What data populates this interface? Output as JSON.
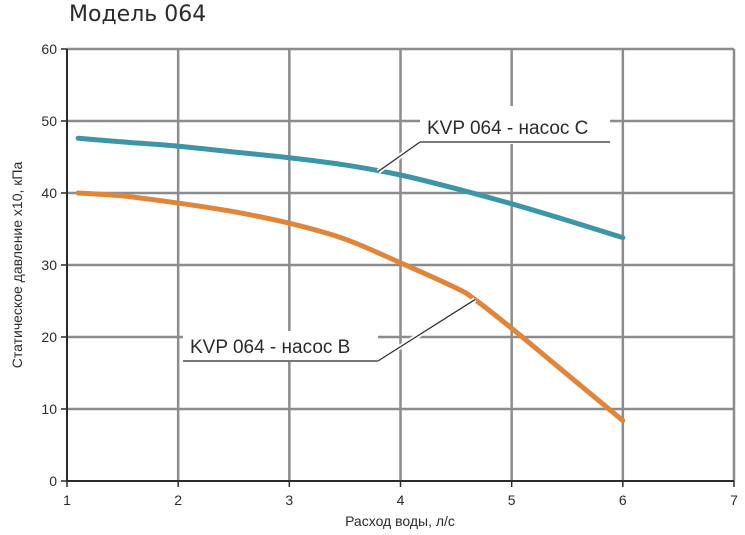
{
  "chart_data": {
    "type": "line",
    "title": "Модель 064",
    "xlabel": "Расход воды, л/с",
    "ylabel": "Статическое давление x10, кПа",
    "xlim": [
      1,
      7
    ],
    "ylim": [
      0,
      60
    ],
    "x_ticks": [
      "1",
      "2",
      "3",
      "4",
      "5",
      "6",
      "7"
    ],
    "y_ticks": [
      "0",
      "10",
      "20",
      "30",
      "40",
      "50",
      "60"
    ],
    "grid": true,
    "series": [
      {
        "name": "KVP 064 - насос C",
        "color": "#3d95a8",
        "x": [
          1.1,
          1.5,
          2.0,
          2.5,
          3.0,
          3.5,
          4.0,
          4.5,
          5.0,
          5.5,
          6.0
        ],
        "y": [
          47.6,
          47.1,
          46.5,
          45.7,
          44.9,
          43.9,
          42.5,
          40.6,
          38.5,
          36.2,
          33.8
        ]
      },
      {
        "name": "KVP 064 - насос B",
        "color": "#e0853a",
        "x": [
          1.1,
          1.5,
          2.0,
          2.5,
          3.0,
          3.5,
          4.0,
          4.5,
          4.67,
          5.0,
          5.5,
          6.0
        ],
        "y": [
          40.0,
          39.6,
          38.6,
          37.4,
          35.8,
          33.6,
          30.3,
          26.8,
          25.2,
          21.2,
          14.8,
          8.4
        ]
      }
    ],
    "annotations": [
      {
        "text": "KVP 064 - насос C",
        "series": 0,
        "x": 3.8,
        "y": 43.0
      },
      {
        "text": "KVP 064 - насос B",
        "series": 1,
        "x": 4.67,
        "y": 25.2
      }
    ]
  }
}
